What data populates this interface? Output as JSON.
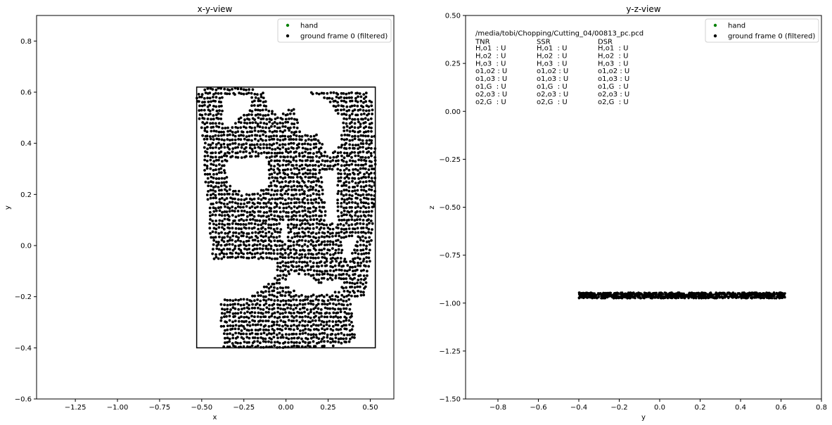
{
  "chart_data": [
    {
      "type": "scatter",
      "title": "x-y-view",
      "xlabel": "x",
      "ylabel": "y",
      "xlim": [
        -1.48,
        0.64
      ],
      "ylim": [
        -0.6,
        0.9
      ],
      "xticks": [
        -1.25,
        -1.0,
        -0.75,
        -0.5,
        -0.25,
        0.0,
        0.25,
        0.5
      ],
      "xtick_labels": [
        "−1.25",
        "−1.00",
        "−0.75",
        "−0.50",
        "−0.25",
        "0.00",
        "0.25",
        "0.50"
      ],
      "yticks": [
        -0.6,
        -0.4,
        -0.2,
        0.0,
        0.2,
        0.4,
        0.6,
        0.8
      ],
      "ytick_labels": [
        "−0.6",
        "−0.4",
        "−0.2",
        "0.0",
        "0.2",
        "0.4",
        "0.6",
        "0.8"
      ],
      "legend": {
        "placement": "upper right",
        "entries": [
          "hand",
          "ground frame 0 (filtered)"
        ]
      },
      "grid": false,
      "series": [
        {
          "name": "hand",
          "color": "#008000",
          "points": []
        },
        {
          "name": "ground frame 0 (filtered)",
          "color": "#000000",
          "region": {
            "x": [
              -0.53,
              0.54
            ],
            "y": [
              -0.4,
              0.62
            ]
          }
        }
      ],
      "bounding_box": {
        "color": "#000000",
        "x": [
          -0.53,
          0.53
        ],
        "y": [
          -0.4,
          0.62
        ]
      }
    },
    {
      "type": "scatter",
      "title": "y-z-view",
      "xlabel": "y",
      "ylabel": "z",
      "xlim": [
        -0.96,
        0.8
      ],
      "ylim": [
        -1.5,
        0.5
      ],
      "xticks": [
        -0.8,
        -0.6,
        -0.4,
        -0.2,
        0.0,
        0.2,
        0.4,
        0.6,
        0.8
      ],
      "xtick_labels": [
        "−0.8",
        "−0.6",
        "−0.4",
        "−0.2",
        "0.0",
        "0.2",
        "0.4",
        "0.6",
        "0.8"
      ],
      "yticks": [
        -1.5,
        -1.25,
        -1.0,
        -0.75,
        -0.5,
        -0.25,
        0.0,
        0.25,
        0.5
      ],
      "ytick_labels": [
        "−1.50",
        "−1.25",
        "−1.00",
        "−0.75",
        "−0.50",
        "−0.25",
        "0.00",
        "0.25",
        "0.50"
      ],
      "legend": {
        "placement": "upper right",
        "entries": [
          "hand",
          "ground frame 0 (filtered)"
        ]
      },
      "grid": false,
      "series": [
        {
          "name": "hand",
          "color": "#008000",
          "points": []
        },
        {
          "name": "ground frame 0 (filtered)",
          "color": "#000000",
          "region": {
            "x": [
              -0.4,
              0.62
            ],
            "y": [
              -0.975,
              -0.945
            ]
          }
        }
      ],
      "annotation": {
        "path": "/media/tobi/Chopping/Cutting_04/00813_pc.pcd",
        "columns": [
          {
            "header": "TNR",
            "rows": [
              "H,o1  : U",
              "H,o2  : U",
              "H,o3  : U",
              "o1,o2 : U",
              "o1,o3 : U",
              "o1,G  : U",
              "o2,o3 : U",
              "o2,G  : U"
            ]
          },
          {
            "header": "SSR",
            "rows": [
              "H,o1  : U",
              "H,o2  : U",
              "H,o3  : U",
              "o1,o2 : U",
              "o1,o3 : U",
              "o1,G  : U",
              "o2,o3 : U",
              "o2,G  : U"
            ]
          },
          {
            "header": "DSR",
            "rows": [
              "H,o1  : U",
              "H,o2  : U",
              "H,o3  : U",
              "o1,o2 : U",
              "o1,o3 : U",
              "o1,G  : U",
              "o2,o3 : U",
              "o2,G  : U"
            ]
          }
        ]
      }
    }
  ]
}
